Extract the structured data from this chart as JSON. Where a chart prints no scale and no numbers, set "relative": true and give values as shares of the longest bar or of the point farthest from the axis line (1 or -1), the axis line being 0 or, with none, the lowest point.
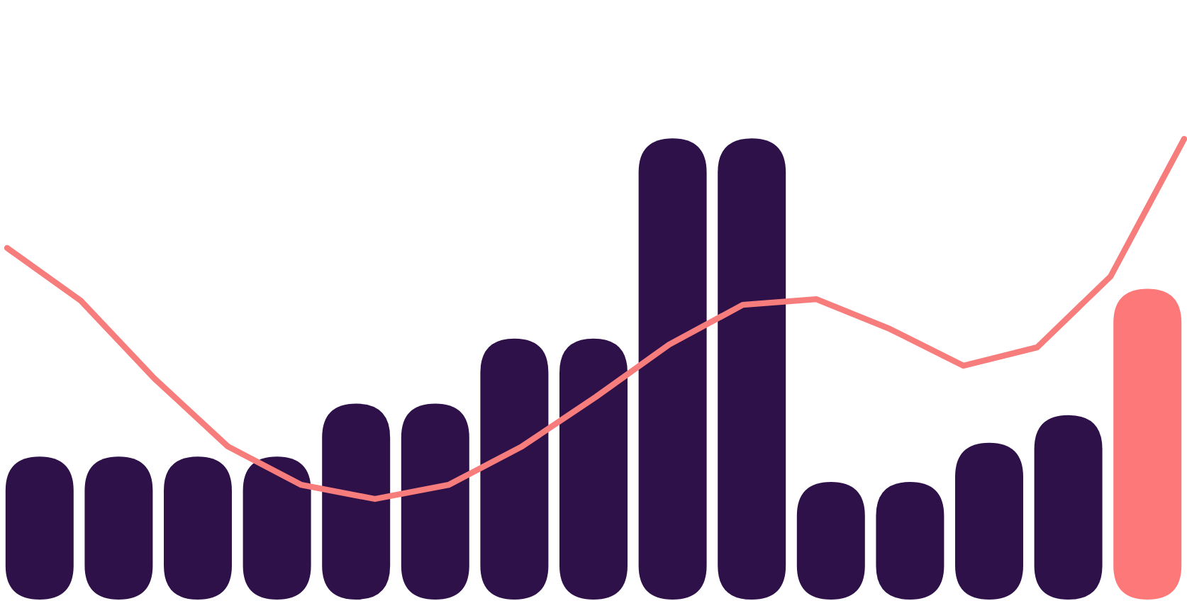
{
  "chart_data": [
    {
      "type": "bar",
      "relative": true,
      "categories": [
        null,
        null,
        null,
        null,
        null,
        null,
        null,
        null,
        null,
        null,
        null,
        null,
        null,
        null,
        null
      ],
      "colors": [
        "#2d1148",
        "#2d1148",
        "#2d1148",
        "#2d1148",
        "#2d1148",
        "#2d1148",
        "#2d1148",
        "#2d1148",
        "#2d1148",
        "#2d1148",
        "#2d1148",
        "#2d1148",
        "#2d1148",
        "#2d1148",
        "#fd7878"
      ],
      "values": [
        0.31,
        0.31,
        0.31,
        0.31,
        0.425,
        0.425,
        0.566,
        0.566,
        1,
        1,
        0.255,
        0.255,
        0.34,
        0.4,
        0.674
      ]
    },
    {
      "type": "line",
      "relative": true,
      "categories": [
        null,
        null,
        null,
        null,
        null,
        null,
        null,
        null,
        null,
        null,
        null,
        null,
        null,
        null,
        null,
        null,
        null
      ],
      "series": [
        {
          "color": "#f77c7c",
          "values": [
            0.697,
            0.551,
            0.335,
            0.146,
            0.039,
            0,
            0.039,
            0.146,
            0.283,
            0.429,
            0.539,
            0.555,
            0.472,
            0.37,
            0.421,
            0.618,
            1
          ]
        }
      ],
      "marker": "none",
      "line_style": "solid"
    }
  ]
}
